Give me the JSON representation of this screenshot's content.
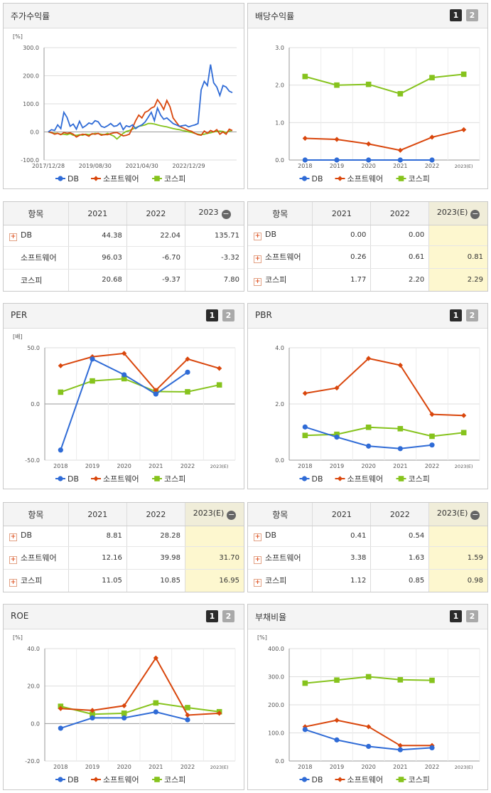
{
  "colors": {
    "db": "#2f6bd6",
    "sw": "#d9460c",
    "kospi": "#86c31d"
  },
  "legend": [
    "DB",
    "소프트웨어",
    "코스피"
  ],
  "btn1": "1",
  "btn2": "2",
  "stock": {
    "title": "주가수익률",
    "unit": "[%]",
    "chart_data": {
      "type": "line",
      "title": "주가수익률",
      "ylabel": "[%]",
      "ylim": [
        -100,
        300
      ],
      "yticks": [
        "300.0",
        "200.0",
        "100.0",
        "0.0",
        "-100.0"
      ],
      "xticks": [
        "2017/12/28",
        "2019/08/30",
        "2021/04/30",
        "2022/12/29"
      ],
      "series": [
        {
          "name": "DB",
          "values": [
            0,
            8,
            5,
            25,
            12,
            70,
            52,
            20,
            28,
            10,
            38,
            15,
            22,
            32,
            28,
            40,
            36,
            20,
            16,
            22,
            30,
            20,
            22,
            32,
            8,
            22,
            18,
            25,
            12,
            20,
            25,
            35,
            52,
            70,
            40,
            85,
            60,
            45,
            50,
            40,
            30,
            25,
            20,
            22,
            24,
            18,
            22,
            25,
            30,
            150,
            180,
            165,
            240,
            175,
            160,
            130,
            165,
            160,
            145,
            140
          ]
        },
        {
          "name": "소프트웨어",
          "values": [
            0,
            -2,
            -8,
            -5,
            -10,
            -2,
            -5,
            -3,
            -8,
            -18,
            -12,
            -8,
            -10,
            -15,
            -6,
            -8,
            -5,
            -12,
            -9,
            -10,
            -6,
            -3,
            -2,
            -8,
            -14,
            -12,
            -8,
            15,
            40,
            60,
            50,
            70,
            75,
            85,
            90,
            115,
            100,
            80,
            112,
            90,
            50,
            35,
            20,
            15,
            10,
            5,
            2,
            -5,
            -10,
            -12,
            3,
            -5,
            5,
            0,
            8,
            -8,
            0,
            -8,
            10,
            5
          ]
        },
        {
          "name": "코스피",
          "values": [
            0,
            -3,
            -5,
            -5,
            -8,
            -8,
            -10,
            -6,
            -12,
            -12,
            -10,
            -12,
            -8,
            -10,
            -8,
            -5,
            -6,
            -8,
            -10,
            -5,
            -10,
            -15,
            -25,
            -15,
            -5,
            2,
            5,
            10,
            15,
            20,
            22,
            25,
            30,
            30,
            28,
            25,
            22,
            20,
            18,
            15,
            12,
            10,
            8,
            5,
            3,
            0,
            -2,
            -5,
            -8,
            -10,
            -8,
            -5,
            -3,
            0,
            2,
            3,
            2,
            -2,
            3,
            5
          ]
        }
      ]
    }
  },
  "dividend": {
    "title": "배당수익률",
    "chart_data": {
      "type": "line",
      "title": "배당수익률",
      "categories": [
        "2018",
        "2019",
        "2020",
        "2021",
        "2022",
        "2023(E)"
      ],
      "ylim": [
        0,
        3
      ],
      "yticks": [
        "3.0",
        "2.0",
        "1.0",
        "0.0"
      ],
      "series": [
        {
          "name": "DB",
          "values": [
            0.0,
            0.0,
            0.0,
            0.0,
            0.0,
            null
          ]
        },
        {
          "name": "소프트웨어",
          "values": [
            0.58,
            0.55,
            0.43,
            0.26,
            0.61,
            0.81
          ]
        },
        {
          "name": "코스피",
          "values": [
            2.23,
            2.0,
            2.02,
            1.77,
            2.2,
            2.29
          ]
        }
      ]
    }
  },
  "per": {
    "title": "PER",
    "unit": "[배]",
    "chart_data": {
      "type": "line",
      "title": "PER",
      "ylabel": "[배]",
      "categories": [
        "2018",
        "2019",
        "2020",
        "2021",
        "2022",
        "2023(E)"
      ],
      "ylim": [
        -50,
        50
      ],
      "yticks": [
        "50.0",
        "0.0",
        "-50.0"
      ],
      "series": [
        {
          "name": "DB",
          "values": [
            -41,
            40,
            26,
            8.81,
            28.28,
            null
          ]
        },
        {
          "name": "소프트웨어",
          "values": [
            34,
            42,
            45,
            12.16,
            39.98,
            31.7
          ]
        },
        {
          "name": "코스피",
          "values": [
            10.5,
            20.5,
            22.5,
            11.05,
            10.85,
            16.95
          ]
        }
      ]
    }
  },
  "pbr": {
    "title": "PBR",
    "chart_data": {
      "type": "line",
      "title": "PBR",
      "categories": [
        "2018",
        "2019",
        "2020",
        "2021",
        "2022",
        "2023(E)"
      ],
      "ylim": [
        0,
        4
      ],
      "yticks": [
        "4.0",
        "2.0",
        "0.0"
      ],
      "series": [
        {
          "name": "DB",
          "values": [
            1.18,
            0.82,
            0.5,
            0.41,
            0.54,
            null
          ]
        },
        {
          "name": "소프트웨어",
          "values": [
            2.38,
            2.57,
            3.62,
            3.38,
            1.63,
            1.59
          ]
        },
        {
          "name": "코스피",
          "values": [
            0.88,
            0.92,
            1.17,
            1.12,
            0.85,
            0.98
          ]
        }
      ]
    }
  },
  "roe": {
    "title": "ROE",
    "unit": "[%]",
    "chart_data": {
      "type": "line",
      "title": "ROE",
      "ylabel": "[%]",
      "categories": [
        "2018",
        "2019",
        "2020",
        "2021",
        "2022",
        "2023(E)"
      ],
      "ylim": [
        -20,
        40
      ],
      "yticks": [
        "40.0",
        "20.0",
        "0.0",
        "-20.0"
      ],
      "series": [
        {
          "name": "DB",
          "values": [
            -2.5,
            3,
            3,
            6.2,
            2,
            null
          ]
        },
        {
          "name": "소프트웨어",
          "values": [
            8,
            7,
            9.5,
            35,
            4.5,
            5.5
          ]
        },
        {
          "name": "코스피",
          "values": [
            9.2,
            5,
            5.5,
            11,
            8.5,
            6.3
          ]
        }
      ]
    }
  },
  "debt": {
    "title": "부채비율",
    "unit": "[%]",
    "chart_data": {
      "type": "line",
      "title": "부채비율",
      "ylabel": "[%]",
      "categories": [
        "2018",
        "2019",
        "2020",
        "2021",
        "2022",
        "2023(E)"
      ],
      "ylim": [
        0,
        400
      ],
      "yticks": [
        "400.0",
        "300.0",
        "200.0",
        "100.0",
        "0.0"
      ],
      "series": [
        {
          "name": "DB",
          "values": [
            112,
            75,
            52,
            40,
            47,
            null
          ]
        },
        {
          "name": "소프트웨어",
          "values": [
            122,
            145,
            122,
            55,
            55,
            null
          ]
        },
        {
          "name": "코스피",
          "values": [
            277,
            288,
            300,
            289,
            287,
            null
          ]
        }
      ]
    }
  },
  "tables": {
    "stock": {
      "header": [
        "항목",
        "2021",
        "2022",
        "2023"
      ],
      "rows": [
        {
          "name": "DB",
          "values": [
            "44.38",
            "22.04",
            "135.71"
          ]
        },
        {
          "name": "소프트웨어",
          "values": [
            "96.03",
            "-6.70",
            "-3.32"
          ]
        },
        {
          "name": "코스피",
          "values": [
            "20.68",
            "-9.37",
            "7.80"
          ]
        }
      ]
    },
    "dividend": {
      "header": [
        "항목",
        "2021",
        "2022",
        "2023(E)"
      ],
      "rows": [
        {
          "name": "DB",
          "values": [
            "0.00",
            "0.00",
            ""
          ]
        },
        {
          "name": "소프트웨어",
          "values": [
            "0.26",
            "0.61",
            "0.81"
          ]
        },
        {
          "name": "코스피",
          "values": [
            "1.77",
            "2.20",
            "2.29"
          ]
        }
      ]
    },
    "per": {
      "header": [
        "항목",
        "2021",
        "2022",
        "2023(E)"
      ],
      "rows": [
        {
          "name": "DB",
          "values": [
            "8.81",
            "28.28",
            ""
          ]
        },
        {
          "name": "소프트웨어",
          "values": [
            "12.16",
            "39.98",
            "31.70"
          ]
        },
        {
          "name": "코스피",
          "values": [
            "11.05",
            "10.85",
            "16.95"
          ]
        }
      ]
    },
    "pbr": {
      "header": [
        "항목",
        "2021",
        "2022",
        "2023(E)"
      ],
      "rows": [
        {
          "name": "DB",
          "values": [
            "0.41",
            "0.54",
            ""
          ]
        },
        {
          "name": "소프트웨어",
          "values": [
            "3.38",
            "1.63",
            "1.59"
          ]
        },
        {
          "name": "코스피",
          "values": [
            "1.12",
            "0.85",
            "0.98"
          ]
        }
      ]
    }
  }
}
